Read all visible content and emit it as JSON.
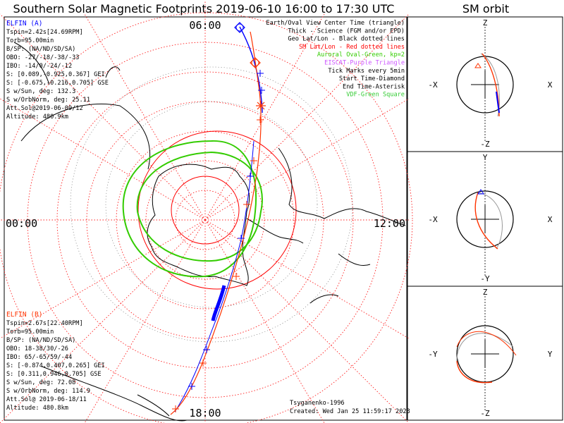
{
  "title": "Southern Solar Magnetic Footprints 2019-06-10 16:00 to 17:30 UTC",
  "sm_title": "SM orbit",
  "colors": {
    "elfin_a": "#0000ff",
    "elfin_b": "#ff3300",
    "sm_grid": "#ff2020",
    "auroral_oval": "#33cc00",
    "eiscat": "#cc55ff",
    "vdf": "#33cc33",
    "coast": "#000000"
  },
  "map": {
    "time_labels": {
      "top": "06:00",
      "left": "00:00",
      "right": "12:00",
      "bottom": "18:00"
    },
    "model": "Tsyganenko-1996",
    "created": "Created: Wed Jan 25 11:59:17 2023"
  },
  "legend": {
    "lines": [
      {
        "text": "Earth/Oval View Center Time (triangle)",
        "color": "#000000"
      },
      {
        "text": "Thick - Science (FGM and/or EPD)",
        "color": "#000000"
      },
      {
        "text": "Geo Lat/Lon - Black dotted lines",
        "color": "#000000"
      },
      {
        "text": "SM Lat/Lon - Red dotted lines",
        "color": "#ff0000"
      },
      {
        "text": "Auroral Oval-Green, kp=2",
        "color": "#33cc00"
      },
      {
        "text": "EISCAT-Purple Triangle",
        "color": "#cc55ff"
      },
      {
        "text": "Tick Marks every 5min",
        "color": "#000000"
      },
      {
        "text": "Start Time-Diamond",
        "color": "#000000"
      },
      {
        "text": "End Time-Asterisk",
        "color": "#000000"
      },
      {
        "text": "VDF-Green Square",
        "color": "#33cc33"
      }
    ]
  },
  "elfin_a": {
    "header": "ELFIN (A)",
    "lines": [
      "Tspin=2.42s[24.69RPM]",
      "Torb=95.00min",
      "B/SP: (NA/ND/SD/SA)",
      "OBO: -27/-18/-38/-33",
      "IBO: -14/0/-24/-12",
      "S: [0.089,-0.925,0.367] GEI",
      "S: [-0.675,-0.216,0.705] GSE",
      "S w/Sun, deg: 132.3",
      "S w/OrbNorm, deg: 25.11",
      "Att.Sol@2019-06-09/12",
      "Altitude: 480.9km"
    ]
  },
  "elfin_b": {
    "header": "ELFIN (B)",
    "lines": [
      "Tspin=2.67s[22.40RPM]",
      "Torb=95.00min",
      "B/SP: (NA/ND/SD/SA)",
      "OBO: 18-38/30/-26",
      "IBO: 65/-65/59/-44",
      "S: [-0.874,0.407,0.265] GEI",
      "S: [0.311,0.946,0.705] GSE",
      "S w/Sun, deg: 72.08",
      "S w/OrbNorm, deg: 114.9",
      "Att.Sol@ 2019-06-18/11",
      "Altitude: 480.8km"
    ]
  },
  "sm_panels": [
    {
      "top": "Z",
      "bottom": "-Z",
      "left": "-X",
      "right": "X"
    },
    {
      "top": "Y",
      "bottom": "-Y",
      "left": "-X",
      "right": "X"
    },
    {
      "top": "Z",
      "bottom": "-Z",
      "left": "-Y",
      "right": "Y"
    }
  ]
}
